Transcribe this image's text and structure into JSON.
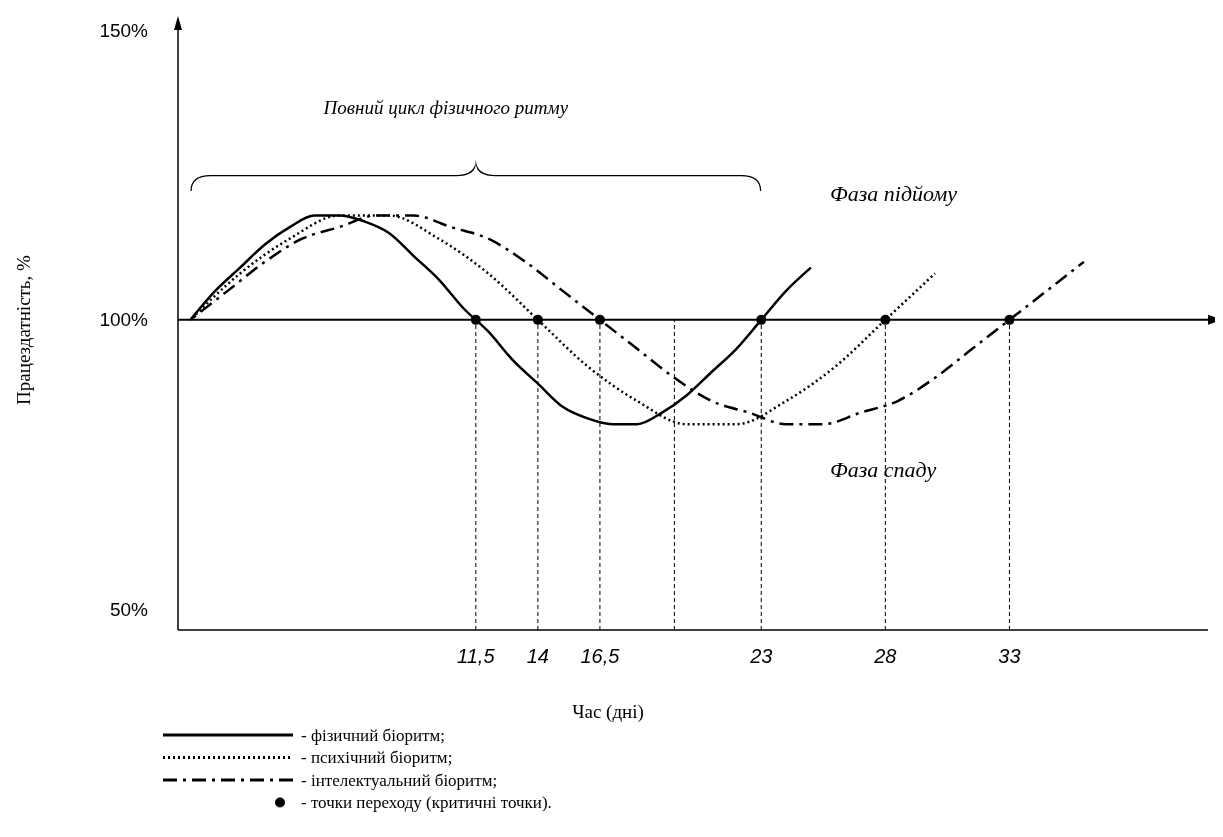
{
  "chart_data": {
    "type": "line",
    "xlabel": "Час (дні)",
    "ylabel": "Працездатність, %",
    "xlim": [
      -0.5,
      41
    ],
    "ylim": [
      46.5,
      150
    ],
    "xticks": [
      {
        "value": 11.5,
        "label": "11,5"
      },
      {
        "value": 14,
        "label": "14"
      },
      {
        "value": 16.5,
        "label": "16,5"
      },
      {
        "value": 23,
        "label": "23"
      },
      {
        "value": 28,
        "label": "28"
      },
      {
        "value": 33,
        "label": "33"
      }
    ],
    "yticks": [
      {
        "value": 50,
        "label": "50%"
      },
      {
        "value": 100,
        "label": "100%"
      },
      {
        "value": 150,
        "label": "150%"
      }
    ],
    "grid": false,
    "legend": "bottom",
    "series": [
      {
        "name": "- фізичний біоритм;",
        "color": "#000000",
        "line_style": "solid",
        "x": [
          0,
          1,
          2,
          3,
          4,
          5,
          6,
          7,
          8,
          9,
          10,
          11,
          12,
          13,
          14,
          15,
          16,
          17,
          18,
          19,
          20,
          21,
          22,
          23,
          24,
          25
        ],
        "values": [
          100,
          105,
          109,
          113,
          116,
          118,
          118,
          117,
          115,
          111,
          107,
          102,
          98,
          93,
          89,
          85,
          83,
          82,
          82,
          84,
          87,
          91,
          95,
          100,
          105,
          109
        ]
      },
      {
        "name": "- психічний біоритм;",
        "color": "#000000",
        "line_style": "dotted",
        "x": [
          0,
          2,
          4,
          6,
          8,
          10,
          12,
          14,
          16,
          18,
          20,
          22,
          24,
          26,
          28,
          30
        ],
        "values": [
          100,
          108,
          114,
          118,
          118,
          114,
          108,
          100,
          92,
          86,
          82,
          82,
          86,
          92,
          100,
          108
        ]
      },
      {
        "name": "- інтелектуальний біоритм;",
        "color": "#000000",
        "line_style": "dashed",
        "x": [
          0,
          1.5,
          3,
          4.5,
          6,
          7.5,
          9,
          10.5,
          12,
          13.5,
          15,
          16.5,
          18,
          19.5,
          21,
          22.5,
          24,
          25.5,
          27,
          28.5,
          30,
          31.5,
          33,
          34.5,
          36
        ],
        "values": [
          100,
          105,
          110,
          114,
          116,
          118,
          118,
          116,
          114,
          110,
          105,
          100,
          95,
          90,
          86,
          84,
          82,
          82,
          84,
          86,
          90,
          95,
          100,
          105,
          110
        ]
      },
      {
        "name": "- точки переходу (критичні точки).",
        "type": "scatter",
        "marker": "circle",
        "color": "#000000",
        "x": [
          11.5,
          14,
          16.5,
          23,
          28,
          33
        ],
        "values": [
          100,
          100,
          100,
          100,
          100,
          100
        ]
      }
    ],
    "ref_lines": [
      {
        "axis": "y",
        "value": 100,
        "label": null,
        "color": "#000000",
        "line_style": "solid"
      },
      {
        "axis": "x",
        "value": 11.5,
        "label": null,
        "color": "#000000",
        "line_style": "dashed"
      },
      {
        "axis": "x",
        "value": 14,
        "label": null,
        "color": "#000000",
        "line_style": "dashed"
      },
      {
        "axis": "x",
        "value": 16.5,
        "label": null,
        "color": "#000000",
        "line_style": "dashed"
      },
      {
        "axis": "x",
        "value": 19.5,
        "label": null,
        "color": "#000000",
        "line_style": "dashed"
      },
      {
        "axis": "x",
        "value": 23,
        "label": null,
        "color": "#000000",
        "line_style": "dashed"
      },
      {
        "axis": "x",
        "value": 28,
        "label": null,
        "color": "#000000",
        "line_style": "dashed"
      },
      {
        "axis": "x",
        "value": 33,
        "label": null,
        "color": "#000000",
        "line_style": "dashed"
      }
    ],
    "annotations": [
      "Повний цикл фізичного ритму",
      "Фаза підйому",
      "Фаза спаду"
    ]
  }
}
